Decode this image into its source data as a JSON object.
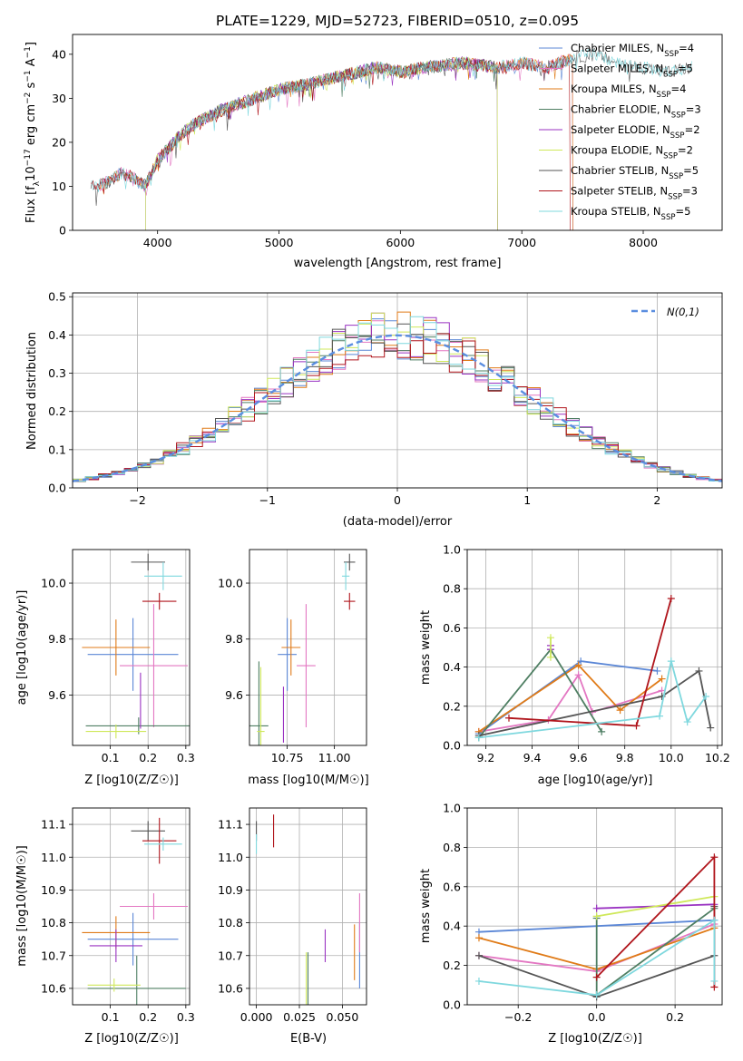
{
  "figure": {
    "title": "PLATE=1229, MJD=52723, FIBERID=0510, z=0.095"
  },
  "colors": {
    "Chabrier MILES": "#5b87d6",
    "Salpeter MILES": "#e377c2",
    "Kroupa MILES": "#e07b18",
    "Chabrier ELODIE": "#4f7f63",
    "Salpeter ELODIE": "#9a33c2",
    "Kroupa ELODIE": "#cfe85a",
    "Chabrier STELIB": "#555555",
    "Salpeter STELIB": "#b0151c",
    "Kroupa STELIB": "#7fd8de",
    "normal": "#5b8ee0"
  },
  "chart_data": [
    {
      "id": "spectrum",
      "type": "line",
      "xlabel": "wavelength [Angstrom, rest frame]",
      "ylabel": "Flux [f_λ 10^-17 erg cm^-2 s^-1 A^-1]",
      "xlim": [
        3300,
        8650
      ],
      "ylim": [
        0,
        44.5
      ],
      "xticks": [
        4000,
        5000,
        6000,
        7000,
        8000
      ],
      "yticks": [
        0,
        10,
        20,
        30,
        40
      ],
      "grid": false,
      "legend_position": "right",
      "spectrum_shape": {
        "x": [
          3450,
          3500,
          3600,
          3700,
          3800,
          3900,
          4000,
          4100,
          4200,
          4300,
          4500,
          4700,
          5000,
          5200,
          5500,
          5800,
          6000,
          6200,
          6500,
          6800,
          7000,
          7200,
          7400,
          7600,
          7800,
          8000,
          8200,
          8400
        ],
        "y": [
          10,
          10,
          11,
          13,
          12,
          10,
          16,
          19,
          22,
          24,
          27,
          29,
          32,
          33,
          35,
          37,
          36,
          37,
          38,
          37,
          38,
          37,
          39,
          40,
          38,
          37,
          36,
          37
        ]
      },
      "series": [
        {
          "name": "Chabrier MILES",
          "nssp": "4",
          "start": 3520,
          "end": 7420
        },
        {
          "name": "Salpeter MILES",
          "nssp": "5",
          "start": 3520,
          "end": 7420
        },
        {
          "name": "Kroupa MILES",
          "nssp": "4",
          "start": 3520,
          "end": 7420
        },
        {
          "name": "Chabrier ELODIE",
          "nssp": "3",
          "start": 3900,
          "end": 6800
        },
        {
          "name": "Salpeter ELODIE",
          "nssp": "2",
          "start": 3900,
          "end": 6800
        },
        {
          "name": "Kroupa ELODIE",
          "nssp": "2",
          "start": 3900,
          "end": 6800
        },
        {
          "name": "Chabrier STELIB",
          "nssp": "5",
          "start": 3450,
          "end": 8400
        },
        {
          "name": "Salpeter STELIB",
          "nssp": "3",
          "start": 3450,
          "end": 7400
        },
        {
          "name": "Kroupa STELIB",
          "nssp": "5",
          "start": 3450,
          "end": 8400
        }
      ]
    },
    {
      "id": "residuals",
      "type": "line",
      "xlabel": "(data-model)/error",
      "ylabel": "Normed distribution",
      "xlim": [
        -2.5,
        2.5
      ],
      "ylim": [
        0,
        0.51
      ],
      "xticks": [
        -2,
        -1,
        0,
        1,
        2
      ],
      "yticks": [
        0.0,
        0.1,
        0.2,
        0.3,
        0.4,
        0.5
      ],
      "grid": true,
      "legend": "N(0,1)",
      "legend_position": "top-right",
      "bin_width": 0.1,
      "reference_curve": "N(0,1)"
    },
    {
      "id": "age-vs-Z",
      "type": "scatter",
      "xlabel": "Z [log10(Z/Z☉)]",
      "ylabel": "age  [log10(age/yr)]",
      "xlim": [
        0.0,
        0.31
      ],
      "ylim": [
        9.42,
        10.12
      ],
      "xticks": [
        0.1,
        0.2,
        0.3
      ],
      "yticks": [
        9.6,
        9.8,
        10.0
      ],
      "grid": true,
      "points": [
        {
          "series": "Chabrier MILES",
          "x": 0.16,
          "y": 9.745,
          "xerr": 0.12,
          "yerr": 0.13
        },
        {
          "series": "Salpeter MILES",
          "x": 0.215,
          "y": 9.705,
          "xerr": 0.09,
          "yerr": 0.22
        },
        {
          "series": "Kroupa MILES",
          "x": 0.115,
          "y": 9.77,
          "xerr": 0.09,
          "yerr": 0.1
        },
        {
          "series": "Chabrier ELODIE",
          "x": 0.175,
          "y": 9.49,
          "xerr": 0.14,
          "yerr": 0.03
        },
        {
          "series": "Salpeter ELODIE",
          "x": 0.18,
          "y": 9.58,
          "xerr": 0.0,
          "yerr": 0.1
        },
        {
          "series": "Kroupa ELODIE",
          "x": 0.115,
          "y": 9.47,
          "xerr": 0.08,
          "yerr": 0.025
        },
        {
          "series": "Chabrier STELIB",
          "x": 0.2,
          "y": 10.075,
          "xerr": 0.045,
          "yerr": 0.03
        },
        {
          "series": "Salpeter STELIB",
          "x": 0.23,
          "y": 9.935,
          "xerr": 0.045,
          "yerr": 0.03
        },
        {
          "series": "Kroupa STELIB",
          "x": 0.24,
          "y": 10.025,
          "xerr": 0.05,
          "yerr": 0.05
        }
      ]
    },
    {
      "id": "age-vs-mass",
      "type": "scatter",
      "xlabel": "mass [log10(M/M☉)]",
      "ylabel": "",
      "xlim": [
        10.55,
        11.17
      ],
      "ylim": [
        9.42,
        10.12
      ],
      "xticks": [
        10.75,
        11.0
      ],
      "yticks": [
        9.6,
        9.8,
        10.0
      ],
      "grid": true,
      "points": [
        {
          "series": "Chabrier MILES",
          "x": 10.75,
          "y": 9.745,
          "xerr": 0.05,
          "yerr": 0.13
        },
        {
          "series": "Salpeter MILES",
          "x": 10.85,
          "y": 9.705,
          "xerr": 0.05,
          "yerr": 0.22
        },
        {
          "series": "Kroupa MILES",
          "x": 10.77,
          "y": 9.77,
          "xerr": 0.05,
          "yerr": 0.1
        },
        {
          "series": "Chabrier ELODIE",
          "x": 10.6,
          "y": 9.49,
          "xerr": 0.05,
          "yerr": 0.23
        },
        {
          "series": "Salpeter ELODIE",
          "x": 10.73,
          "y": 9.53,
          "xerr": 0.0,
          "yerr": 0.1
        },
        {
          "series": "Kroupa ELODIE",
          "x": 10.61,
          "y": 9.47,
          "xerr": 0.02,
          "yerr": 0.23
        },
        {
          "series": "Chabrier STELIB",
          "x": 11.08,
          "y": 10.075,
          "xerr": 0.03,
          "yerr": 0.03
        },
        {
          "series": "Salpeter STELIB",
          "x": 11.08,
          "y": 9.935,
          "xerr": 0.03,
          "yerr": 0.03
        },
        {
          "series": "Kroupa STELIB",
          "x": 11.06,
          "y": 10.025,
          "xerr": 0.02,
          "yerr": 0.05
        }
      ]
    },
    {
      "id": "weight-vs-age",
      "type": "line",
      "xlabel": "age  [log10(age/yr)]",
      "ylabel": "mass weight",
      "xlim": [
        9.12,
        10.22
      ],
      "ylim": [
        0.0,
        1.0
      ],
      "xticks": [
        9.2,
        9.4,
        9.6,
        9.8,
        10.0,
        10.2
      ],
      "yticks": [
        0.0,
        0.2,
        0.4,
        0.6,
        0.8,
        1.0
      ],
      "grid": true,
      "series": [
        {
          "name": "Chabrier MILES",
          "x": [
            9.17,
            9.61,
            9.94
          ],
          "y": [
            0.06,
            0.43,
            0.38
          ]
        },
        {
          "name": "Salpeter MILES",
          "x": [
            9.17,
            9.47,
            9.6,
            9.66,
            9.96
          ],
          "y": [
            0.07,
            0.13,
            0.36,
            0.17,
            0.28
          ]
        },
        {
          "name": "Kroupa MILES",
          "x": [
            9.17,
            9.6,
            9.78,
            9.96
          ],
          "y": [
            0.07,
            0.41,
            0.18,
            0.34
          ]
        },
        {
          "name": "Chabrier ELODIE",
          "x": [
            9.17,
            9.48,
            9.7
          ],
          "y": [
            0.04,
            0.49,
            0.07
          ]
        },
        {
          "name": "Salpeter ELODIE",
          "x": [
            9.48,
            9.48
          ],
          "y": [
            0.51,
            0.49
          ]
        },
        {
          "name": "Kroupa ELODIE",
          "x": [
            9.48,
            9.48
          ],
          "y": [
            0.45,
            0.55
          ]
        },
        {
          "name": "Chabrier STELIB",
          "x": [
            9.17,
            9.96,
            10.12,
            10.17
          ],
          "y": [
            0.05,
            0.25,
            0.38,
            0.09
          ]
        },
        {
          "name": "Salpeter STELIB",
          "x": [
            9.3,
            9.85,
            10.0
          ],
          "y": [
            0.14,
            0.1,
            0.75
          ]
        },
        {
          "name": "Kroupa STELIB",
          "x": [
            9.17,
            9.95,
            10.0,
            10.07,
            10.15
          ],
          "y": [
            0.04,
            0.15,
            0.43,
            0.12,
            0.25
          ]
        }
      ]
    },
    {
      "id": "mass-vs-Z",
      "type": "scatter",
      "xlabel": "Z [log10(Z/Z☉)]",
      "ylabel": "mass [log10(M/M☉)]",
      "xlim": [
        0.0,
        0.31
      ],
      "ylim": [
        10.55,
        11.15
      ],
      "xticks": [
        0.1,
        0.2,
        0.3
      ],
      "yticks": [
        10.6,
        10.7,
        10.8,
        10.9,
        11.0,
        11.1
      ],
      "grid": true,
      "points": [
        {
          "series": "Chabrier MILES",
          "x": 0.16,
          "y": 10.75,
          "xerr": 0.12,
          "yerr": 0.08
        },
        {
          "series": "Salpeter MILES",
          "x": 0.215,
          "y": 10.85,
          "xerr": 0.09,
          "yerr": 0.04
        },
        {
          "series": "Kroupa MILES",
          "x": 0.115,
          "y": 10.77,
          "xerr": 0.09,
          "yerr": 0.05
        },
        {
          "series": "Chabrier ELODIE",
          "x": 0.17,
          "y": 10.6,
          "xerr": 0.13,
          "yerr": 0.1
        },
        {
          "series": "Salpeter ELODIE",
          "x": 0.115,
          "y": 10.73,
          "xerr": 0.07,
          "yerr": 0.05
        },
        {
          "series": "Kroupa ELODIE",
          "x": 0.11,
          "y": 10.61,
          "xerr": 0.07,
          "yerr": 0.02
        },
        {
          "series": "Chabrier STELIB",
          "x": 0.2,
          "y": 11.08,
          "xerr": 0.045,
          "yerr": 0.03
        },
        {
          "series": "Salpeter STELIB",
          "x": 0.23,
          "y": 11.05,
          "xerr": 0.045,
          "yerr": 0.07
        },
        {
          "series": "Kroupa STELIB",
          "x": 0.24,
          "y": 11.04,
          "xerr": 0.05,
          "yerr": 0.02
        }
      ]
    },
    {
      "id": "mass-vs-ebv",
      "type": "scatter",
      "xlabel": "E(B-V)",
      "ylabel": "",
      "xlim": [
        -0.004,
        0.064
      ],
      "ylim": [
        10.55,
        11.15
      ],
      "xticks": [
        0.0,
        0.025,
        0.05
      ],
      "yticks": [
        10.6,
        10.7,
        10.8,
        10.9,
        11.0,
        11.1
      ],
      "grid": true,
      "points": [
        {
          "series": "Chabrier MILES",
          "x": 0.06,
          "y": 10.7,
          "xerr": 0.0,
          "yerr": 0.1
        },
        {
          "series": "Salpeter MILES",
          "x": 0.06,
          "y": 10.8,
          "xerr": 0.0,
          "yerr": 0.09
        },
        {
          "series": "Kroupa MILES",
          "x": 0.057,
          "y": 10.71,
          "xerr": 0.0,
          "yerr": 0.085
        },
        {
          "series": "Chabrier ELODIE",
          "x": 0.03,
          "y": 10.63,
          "xerr": 0.0,
          "yerr": 0.08
        },
        {
          "series": "Salpeter ELODIE",
          "x": 0.04,
          "y": 10.73,
          "xerr": 0.0,
          "yerr": 0.05
        },
        {
          "series": "Kroupa ELODIE",
          "x": 0.029,
          "y": 10.63,
          "xerr": 0.0,
          "yerr": 0.08
        },
        {
          "series": "Chabrier STELIB",
          "x": 0.0,
          "y": 11.08,
          "xerr": 0.0,
          "yerr": 0.03
        },
        {
          "series": "Salpeter STELIB",
          "x": 0.01,
          "y": 11.08,
          "xerr": 0.0,
          "yerr": 0.05
        },
        {
          "series": "Kroupa STELIB",
          "x": 0.0,
          "y": 11.04,
          "xerr": 0.0,
          "yerr": 0.03
        }
      ]
    },
    {
      "id": "weight-vs-Z",
      "type": "line",
      "xlabel": "Z [log10(Z/Z☉)]",
      "ylabel": "mass weight",
      "xlim": [
        -0.33,
        0.32
      ],
      "ylim": [
        0.0,
        1.0
      ],
      "xticks": [
        -0.2,
        0.0,
        0.2
      ],
      "yticks": [
        0.0,
        0.2,
        0.4,
        0.6,
        0.8,
        1.0
      ],
      "grid": true,
      "series": [
        {
          "name": "Chabrier MILES",
          "x": [
            -0.3,
            0.3
          ],
          "y": [
            0.37,
            0.43
          ]
        },
        {
          "name": "Salpeter MILES",
          "x": [
            -0.3,
            0.0,
            0.3
          ],
          "y": [
            0.25,
            0.17,
            0.41
          ]
        },
        {
          "name": "Kroupa MILES",
          "x": [
            -0.3,
            0.0,
            0.3
          ],
          "y": [
            0.34,
            0.18,
            0.39
          ]
        },
        {
          "name": "Chabrier ELODIE",
          "x": [
            0.0,
            0.0,
            0.3
          ],
          "y": [
            0.44,
            0.05,
            0.49
          ]
        },
        {
          "name": "Salpeter ELODIE",
          "x": [
            0.0,
            0.3
          ],
          "y": [
            0.49,
            0.51
          ]
        },
        {
          "name": "Kroupa ELODIE",
          "x": [
            0.0,
            0.3
          ],
          "y": [
            0.45,
            0.55
          ]
        },
        {
          "name": "Chabrier STELIB",
          "x": [
            -0.3,
            0.0,
            0.3,
            0.3
          ],
          "y": [
            0.25,
            0.04,
            0.25,
            0.5
          ]
        },
        {
          "name": "Salpeter STELIB",
          "x": [
            0.0,
            0.3,
            0.3
          ],
          "y": [
            0.14,
            0.75,
            0.09
          ]
        },
        {
          "name": "Kroupa STELIB",
          "x": [
            -0.3,
            0.0,
            0.3,
            0.3
          ],
          "y": [
            0.12,
            0.05,
            0.43,
            0.12
          ]
        }
      ]
    }
  ]
}
